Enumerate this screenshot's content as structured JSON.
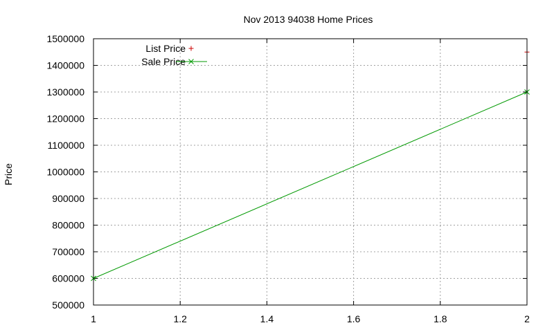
{
  "chart_data": {
    "type": "line",
    "title": "Nov 2013 94038 Home Prices",
    "xlabel": "",
    "ylabel": "Price",
    "xlim": [
      1,
      2
    ],
    "ylim": [
      500000,
      1500000
    ],
    "x_ticks": [
      "1",
      "1.2",
      "1.4",
      "1.6",
      "1.8",
      "2"
    ],
    "x_tick_values": [
      1,
      1.2,
      1.4,
      1.6,
      1.8,
      2
    ],
    "y_ticks": [
      "500000",
      "600000",
      "700000",
      "800000",
      "900000",
      "1000000",
      "1100000",
      "1200000",
      "1300000",
      "1400000",
      "1500000"
    ],
    "y_tick_values": [
      500000,
      600000,
      700000,
      800000,
      900000,
      1000000,
      1100000,
      1200000,
      1300000,
      1400000,
      1500000
    ],
    "grid": true,
    "legend_position": "top-left",
    "series": [
      {
        "name": "List Price",
        "style": "points",
        "marker": "plus",
        "color": "#cc0000",
        "x": [
          2
        ],
        "y": [
          1450000
        ]
      },
      {
        "name": "Sale Price",
        "style": "linespoints",
        "marker": "cross",
        "color": "#009900",
        "x": [
          1,
          2
        ],
        "y": [
          600000,
          1300000
        ]
      }
    ]
  }
}
